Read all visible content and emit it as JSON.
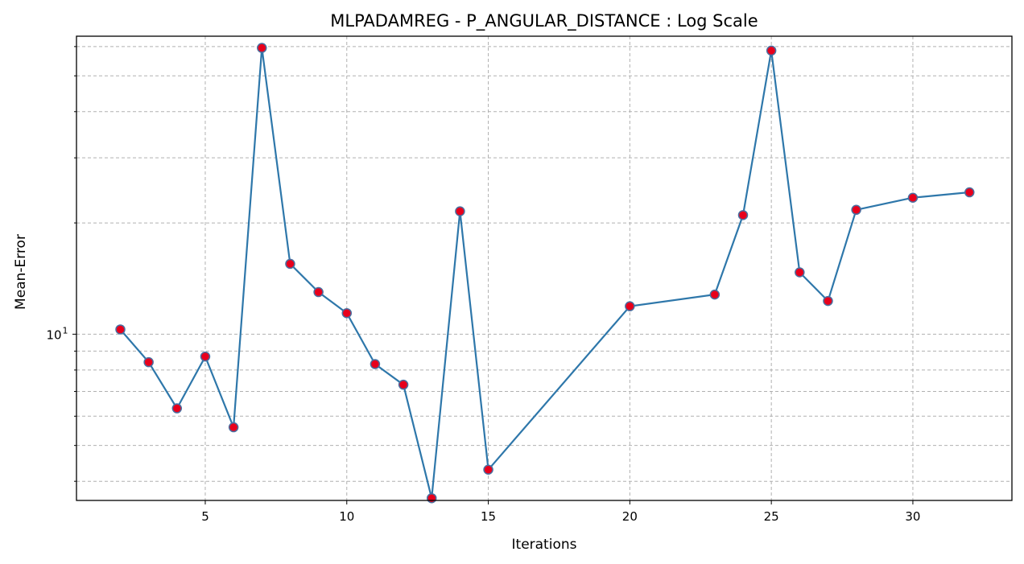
{
  "chart_data": {
    "type": "line",
    "title": "MLPADAMREG - P_ANGULAR_DISTANCE : Log Scale",
    "xlabel": "Iterations",
    "ylabel": "Mean-Error",
    "x": [
      2,
      3,
      4,
      5,
      6,
      7,
      8,
      9,
      10,
      11,
      12,
      13,
      14,
      15,
      20,
      23,
      24,
      25,
      26,
      27,
      28,
      30,
      32
    ],
    "series": [
      {
        "values": [
          10.3,
          8.4,
          6.3,
          8.7,
          5.6,
          59.5,
          15.5,
          13.0,
          11.4,
          8.3,
          7.3,
          3.6,
          21.5,
          4.3,
          11.9,
          12.8,
          21.0,
          58.5,
          14.7,
          12.3,
          21.7,
          23.4,
          24.2
        ],
        "line_color": "#2e77aa",
        "marker_fill": "#e8001c",
        "marker_edge": "#4a6fa0"
      }
    ],
    "xticks": [
      "5",
      "10",
      "15",
      "20",
      "25",
      "30"
    ],
    "yticks_major": [
      {
        "base": "10",
        "exp": "1"
      }
    ],
    "y_scale": "log",
    "xlim": [
      0.45,
      33.5
    ],
    "ylim": [
      3.55,
      64
    ],
    "grid": true
  }
}
